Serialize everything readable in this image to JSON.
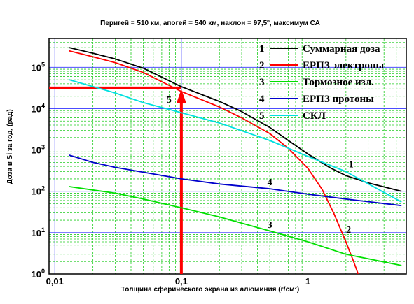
{
  "chart_data": {
    "type": "line",
    "title": "Перигей = 510 км, апогей = 540 км, наклон = 97,5º, максимум СА",
    "xlabel": "Толщина сферического экрана из алюминия (г/см²)",
    "ylabel": "Доза в Si за год, (рад)",
    "xscale": "log",
    "yscale": "log",
    "xlim": [
      0.009,
      6
    ],
    "ylim": [
      1,
      500000
    ],
    "x_ticks": [
      {
        "value": 0.01,
        "label": "0,01"
      },
      {
        "value": 0.1,
        "label": "0,1"
      },
      {
        "value": 1,
        "label": "1"
      }
    ],
    "y_ticks": [
      {
        "value": 1,
        "base": "10",
        "exp": "0"
      },
      {
        "value": 10,
        "base": "10",
        "exp": "1"
      },
      {
        "value": 100,
        "base": "10",
        "exp": "2"
      },
      {
        "value": 1000,
        "base": "10",
        "exp": "3"
      },
      {
        "value": 10000,
        "base": "10",
        "exp": "4"
      },
      {
        "value": 100000,
        "base": "10",
        "exp": "5"
      }
    ],
    "grid": true,
    "legend_position": "top-right",
    "series": [
      {
        "num": "1",
        "name": "Суммарная доза",
        "color": "#000000",
        "x": [
          0.013,
          0.02,
          0.03,
          0.05,
          0.1,
          0.2,
          0.3,
          0.5,
          0.7,
          1.0,
          1.5,
          2.0,
          3.0,
          5.5
        ],
        "y": [
          300000,
          220000,
          160000,
          95000,
          34000,
          15000,
          8500,
          3500,
          1700,
          800,
          370,
          240,
          160,
          100
        ]
      },
      {
        "num": "2",
        "name": "ЕРПЗ электроны",
        "color": "#ff0000",
        "x": [
          0.013,
          0.02,
          0.03,
          0.05,
          0.1,
          0.2,
          0.3,
          0.5,
          0.7,
          1.0,
          1.3,
          1.6,
          2.0,
          2.3,
          2.5
        ],
        "y": [
          250000,
          180000,
          130000,
          75000,
          26000,
          11000,
          6000,
          2500,
          1100,
          360,
          110,
          30,
          6,
          2,
          1
        ]
      },
      {
        "num": "3",
        "name": "Тормозное изл.",
        "color": "#00e000",
        "x": [
          0.013,
          0.03,
          0.05,
          0.1,
          0.2,
          0.5,
          1.0,
          2.0,
          5.5
        ],
        "y": [
          130,
          90,
          65,
          40,
          24,
          11,
          6,
          3,
          1.6
        ]
      },
      {
        "num": "4",
        "name": "ЕРПЗ протоны",
        "color": "#0000cc",
        "x": [
          0.013,
          0.02,
          0.03,
          0.05,
          0.1,
          0.2,
          0.5,
          1.0,
          2.0,
          5.5
        ],
        "y": [
          750,
          500,
          380,
          290,
          200,
          150,
          115,
          85,
          65,
          45
        ]
      },
      {
        "num": "5",
        "name": "СКЛ",
        "color": "#00e0e0",
        "x": [
          0.013,
          0.03,
          0.05,
          0.1,
          0.2,
          0.5,
          1.0,
          2.0,
          5.5
        ],
        "y": [
          50000,
          24000,
          14000,
          8000,
          4500,
          1700,
          700,
          300,
          55
        ]
      }
    ],
    "curve_labels": [
      {
        "text": "1",
        "x": 2.2,
        "y": 380
      },
      {
        "text": "2",
        "x": 2.1,
        "y": 10
      },
      {
        "text": "3",
        "x": 0.5,
        "y": 13
      },
      {
        "text": "4",
        "x": 0.5,
        "y": 140
      },
      {
        "text": "5",
        "x": 0.08,
        "y": 14000
      }
    ],
    "annotation": {
      "color": "#ff0000",
      "x_value": 0.1,
      "y_value": 32000
    }
  }
}
